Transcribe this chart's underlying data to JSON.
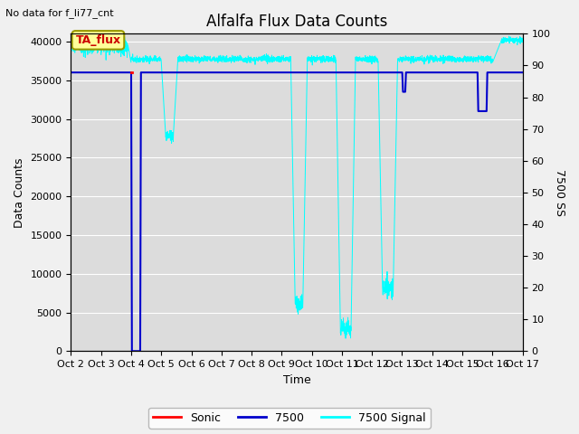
{
  "title": "Alfalfa Flux Data Counts",
  "no_data_text": "No data for f_li77_cnt",
  "xlabel": "Time",
  "ylabel_left": "Data Counts",
  "ylabel_right": "7500 SS",
  "legend_labels": [
    "Sonic",
    "7500",
    "7500 Signal"
  ],
  "legend_colors": [
    "#ff0000",
    "#0000cc",
    "#00ffff"
  ],
  "bg_color": "#dcdcdc",
  "annotation_text": "TA_flux",
  "annotation_color": "#ffff99",
  "annotation_border": "#999900",
  "ylim_left": [
    0,
    41000
  ],
  "ylim_right": [
    0,
    100
  ],
  "yticks_left": [
    0,
    5000,
    10000,
    15000,
    20000,
    25000,
    30000,
    35000,
    40000
  ],
  "yticks_right": [
    0,
    10,
    20,
    30,
    40,
    50,
    60,
    70,
    80,
    90,
    100
  ],
  "xtick_labels": [
    "Oct 2",
    "Oct 3",
    "Oct 4",
    "Oct 5",
    "Oct 6",
    "Oct 7",
    "Oct 8",
    "Oct 9",
    "Oct 10",
    "Oct 11",
    "Oct 12",
    "Oct 13",
    "Oct 14",
    "Oct 15",
    "Oct 16",
    "Oct 17"
  ],
  "sonic_color": "#ff0000",
  "line7500_color": "#0000cc",
  "signal_color": "#00ffff",
  "line7500_value": 36000,
  "total_points": 3000,
  "figsize": [
    6.4,
    4.8
  ],
  "dpi": 100
}
